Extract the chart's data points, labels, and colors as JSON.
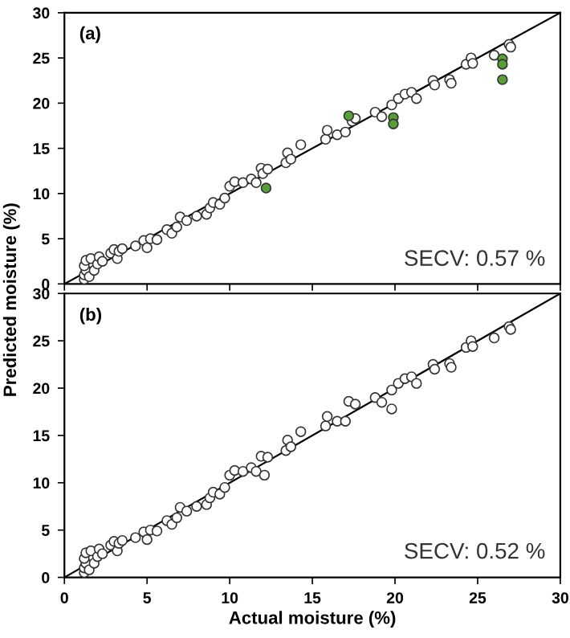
{
  "chart_data": [
    {
      "type": "scatter",
      "ylabel": "Predicted moisture (%)",
      "annotations": [
        "(a)",
        "SECV: 0.57 %"
      ],
      "tick_labels": "y",
      "marker": "circle",
      "xlim": [
        0,
        30
      ],
      "ylim": [
        0,
        30
      ],
      "xticks": [
        0,
        5,
        10,
        15,
        20,
        25,
        30
      ],
      "yticks": [
        0,
        5,
        10,
        15,
        20,
        25,
        30
      ],
      "series": [
        {
          "type": "line",
          "marker": "none",
          "color": "#000000",
          "x": [
            0,
            30
          ],
          "values": [
            0,
            30
          ]
        },
        {
          "color": "#ffffff",
          "x": [
            1.2,
            1.2,
            1.3,
            1.2,
            1.3,
            1.5,
            1.6,
            1.8,
            2.0,
            2.1,
            2.3,
            2.8,
            3.0,
            3.2,
            3.3,
            3.5,
            4.3,
            4.8,
            5.0,
            5.2,
            5.6,
            6.2,
            6.5,
            6.8,
            7.0,
            7.4,
            8.0,
            8.6,
            8.8,
            9.0,
            9.4,
            9.7,
            10.0,
            10.3,
            10.8,
            11.3,
            11.6,
            11.9,
            12.0,
            12.3,
            13.4,
            13.5,
            13.7,
            14.3,
            15.8,
            15.9,
            16.5,
            17.0,
            17.4,
            17.6,
            18.8,
            19.2,
            19.8,
            20.2,
            20.6,
            21.0,
            21.3,
            22.3,
            22.4,
            23.3,
            23.4,
            24.3,
            24.6,
            24.7,
            26.0,
            26.9,
            27.0
          ],
          "values": [
            0.5,
            1.0,
            1.5,
            2.0,
            2.6,
            0.8,
            2.8,
            1.5,
            2.2,
            3.0,
            2.5,
            3.4,
            3.8,
            2.8,
            3.6,
            3.9,
            4.2,
            4.8,
            4.0,
            5.0,
            4.9,
            6.0,
            5.6,
            6.3,
            7.4,
            7.0,
            7.5,
            7.7,
            8.4,
            9.0,
            8.8,
            9.5,
            10.8,
            11.3,
            11.2,
            11.6,
            11.2,
            12.8,
            12.2,
            12.7,
            13.4,
            14.5,
            13.8,
            15.4,
            16.0,
            17.0,
            16.5,
            16.8,
            18.0,
            18.3,
            19.0,
            18.5,
            19.8,
            20.5,
            21.0,
            21.2,
            20.5,
            22.5,
            22.0,
            22.6,
            22.2,
            24.3,
            25.0,
            24.4,
            25.3,
            26.5,
            26.2
          ]
        },
        {
          "color": "#5a9e3a",
          "x": [
            12.2,
            17.2,
            19.9,
            19.9,
            26.5,
            26.5,
            26.5
          ],
          "values": [
            10.6,
            18.6,
            18.4,
            17.7,
            24.9,
            24.3,
            22.6
          ]
        }
      ]
    },
    {
      "type": "scatter",
      "xlabel": "Actual moisture (%)",
      "annotations": [
        "(b)",
        "SECV: 0.52 %"
      ],
      "marker": "circle",
      "xlim": [
        0,
        30
      ],
      "ylim": [
        0,
        30
      ],
      "xticks": [
        0,
        5,
        10,
        15,
        20,
        25,
        30
      ],
      "yticks": [
        0,
        5,
        10,
        15,
        20,
        25,
        30
      ],
      "series": [
        {
          "type": "line",
          "marker": "none",
          "color": "#000000",
          "x": [
            0,
            30
          ],
          "values": [
            0,
            30
          ]
        },
        {
          "color": "#ffffff",
          "x": [
            1.2,
            1.2,
            1.3,
            1.2,
            1.3,
            1.5,
            1.6,
            1.8,
            2.0,
            2.1,
            2.3,
            2.8,
            3.0,
            3.2,
            3.3,
            3.5,
            4.3,
            4.8,
            5.0,
            5.2,
            5.6,
            6.2,
            6.5,
            6.8,
            7.0,
            7.4,
            8.0,
            8.6,
            8.8,
            9.0,
            9.4,
            9.7,
            10.0,
            10.3,
            10.8,
            11.3,
            11.6,
            11.9,
            12.1,
            12.3,
            13.4,
            13.5,
            13.7,
            14.3,
            15.8,
            15.9,
            16.5,
            17.0,
            17.2,
            17.6,
            18.8,
            19.2,
            19.8,
            19.8,
            20.2,
            20.6,
            21.0,
            21.3,
            22.3,
            22.4,
            23.3,
            23.4,
            24.3,
            24.6,
            24.7,
            26.0,
            26.9,
            27.0
          ],
          "values": [
            0.5,
            1.0,
            1.5,
            2.0,
            2.6,
            0.8,
            2.8,
            1.5,
            2.2,
            3.0,
            2.5,
            3.4,
            3.8,
            2.8,
            3.6,
            3.9,
            4.2,
            4.8,
            4.0,
            5.0,
            4.9,
            6.0,
            5.6,
            6.3,
            7.4,
            7.0,
            7.5,
            7.7,
            8.4,
            9.0,
            8.8,
            9.5,
            10.8,
            11.3,
            11.2,
            11.6,
            11.2,
            12.8,
            10.8,
            12.7,
            13.4,
            14.5,
            13.8,
            15.4,
            16.0,
            17.0,
            16.5,
            16.5,
            18.6,
            18.3,
            19.0,
            18.5,
            19.8,
            17.8,
            20.5,
            21.0,
            21.2,
            20.5,
            22.5,
            22.0,
            22.6,
            22.2,
            24.3,
            25.0,
            24.4,
            25.3,
            26.5,
            26.2
          ]
        }
      ]
    }
  ]
}
